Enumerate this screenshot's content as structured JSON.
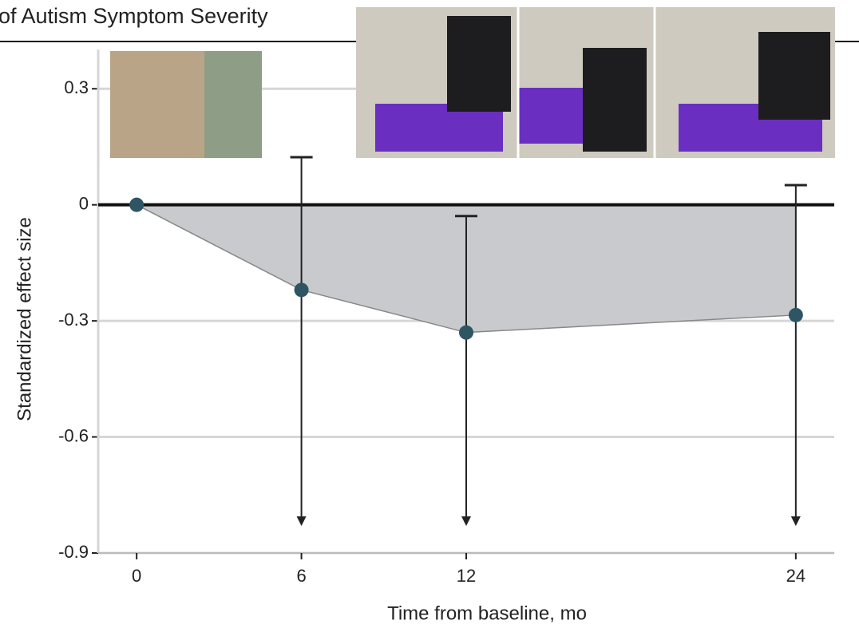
{
  "chart_data": {
    "type": "line",
    "title": "of Autism Symptom Severity",
    "xlabel": "Time from baseline, mo",
    "ylabel": "Standardized effect size",
    "x": [
      0,
      6,
      12,
      24
    ],
    "series": [
      {
        "color": "#2e5563",
        "fill": "#c8cacd",
        "values": [
          0,
          -0.22,
          -0.33,
          -0.285
        ],
        "ci_upper": [
          null,
          0.123,
          -0.029,
          0.051
        ],
        "ci_lower": [
          null,
          -0.83,
          -0.83,
          -0.83
        ]
      }
    ],
    "xlim": [
      -1.4,
      25.4
    ],
    "xticks": [
      0,
      6,
      12,
      24
    ],
    "ylim": [
      -0.9,
      0.35
    ],
    "yticks": [
      0.3,
      0,
      -0.3,
      -0.6,
      -0.9
    ],
    "grid": true
  }
}
